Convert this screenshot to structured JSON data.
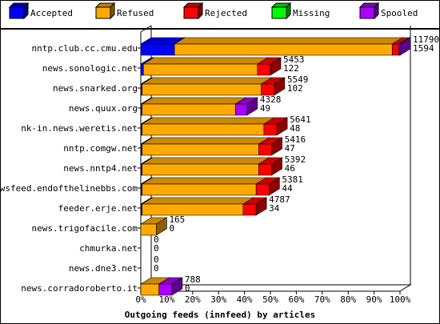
{
  "chart_data": {
    "type": "bar",
    "orientation": "horizontal",
    "stacked": true,
    "three_d": true,
    "title": "",
    "xlabel": "Outgoing feeds (innfeed) by articles",
    "ylabel": "",
    "xlim": [
      0,
      100
    ],
    "x_ticks": [
      "0%",
      "10%",
      "20%",
      "30%",
      "40%",
      "50%",
      "60%",
      "70%",
      "80%",
      "90%",
      "100%"
    ],
    "grid": false,
    "legend_position": "top",
    "legend": [
      {
        "name": "Accepted",
        "color": "#0000ff"
      },
      {
        "name": "Refused",
        "color": "#ffaa00"
      },
      {
        "name": "Rejected",
        "color": "#ff0000"
      },
      {
        "name": "Missing",
        "color": "#00ff00"
      },
      {
        "name": "Spooled",
        "color": "#aa00ff"
      }
    ],
    "categories": [
      "nntp.club.cc.cmu.edu",
      "news.sonologic.net",
      "news.snarked.org",
      "news.quux.org",
      "nk-in.news.weretis.net",
      "nntp.comgw.net",
      "news.nntp4.net",
      "newsfeed.endofthelinebbs.com",
      "feeder.erje.net",
      "news.trigofacile.com",
      "chmurka.net",
      "news.dne3.net",
      "news.corradoroberto.it"
    ],
    "value_labels": [
      [
        "11790",
        "1594"
      ],
      [
        "5453",
        "122"
      ],
      [
        "5549",
        "102"
      ],
      [
        "4328",
        "49"
      ],
      [
        "5641",
        "48"
      ],
      [
        "5416",
        "47"
      ],
      [
        "5392",
        "46"
      ],
      [
        "5381",
        "44"
      ],
      [
        "4787",
        "34"
      ],
      [
        "165",
        "0"
      ],
      [
        "0",
        "0"
      ],
      [
        "0",
        "0"
      ],
      [
        "788",
        "0"
      ]
    ],
    "series": [
      {
        "name": "Accepted",
        "color": "#0000ff",
        "values": [
          13,
          1,
          0.5,
          0.5,
          0.5,
          0.5,
          0.5,
          0.5,
          0.5,
          0,
          0,
          0,
          0
        ]
      },
      {
        "name": "Refused",
        "color": "#ffaa00",
        "values": [
          84,
          44,
          46,
          36,
          47,
          45,
          45,
          44,
          39,
          6,
          0,
          0,
          7
        ]
      },
      {
        "name": "Rejected",
        "color": "#ff0000",
        "values": [
          2.5,
          5,
          5,
          0,
          5,
          5,
          5,
          5,
          5,
          0,
          0,
          0,
          0
        ]
      },
      {
        "name": "Missing",
        "color": "#00ff00",
        "values": [
          0,
          0,
          0,
          0,
          0,
          0,
          0,
          0,
          0,
          0,
          0,
          0,
          0
        ]
      },
      {
        "name": "Spooled",
        "color": "#aa00ff",
        "values": [
          0.5,
          0,
          0,
          4.5,
          0,
          0,
          0,
          0,
          0,
          0,
          0,
          0,
          5
        ]
      }
    ]
  }
}
